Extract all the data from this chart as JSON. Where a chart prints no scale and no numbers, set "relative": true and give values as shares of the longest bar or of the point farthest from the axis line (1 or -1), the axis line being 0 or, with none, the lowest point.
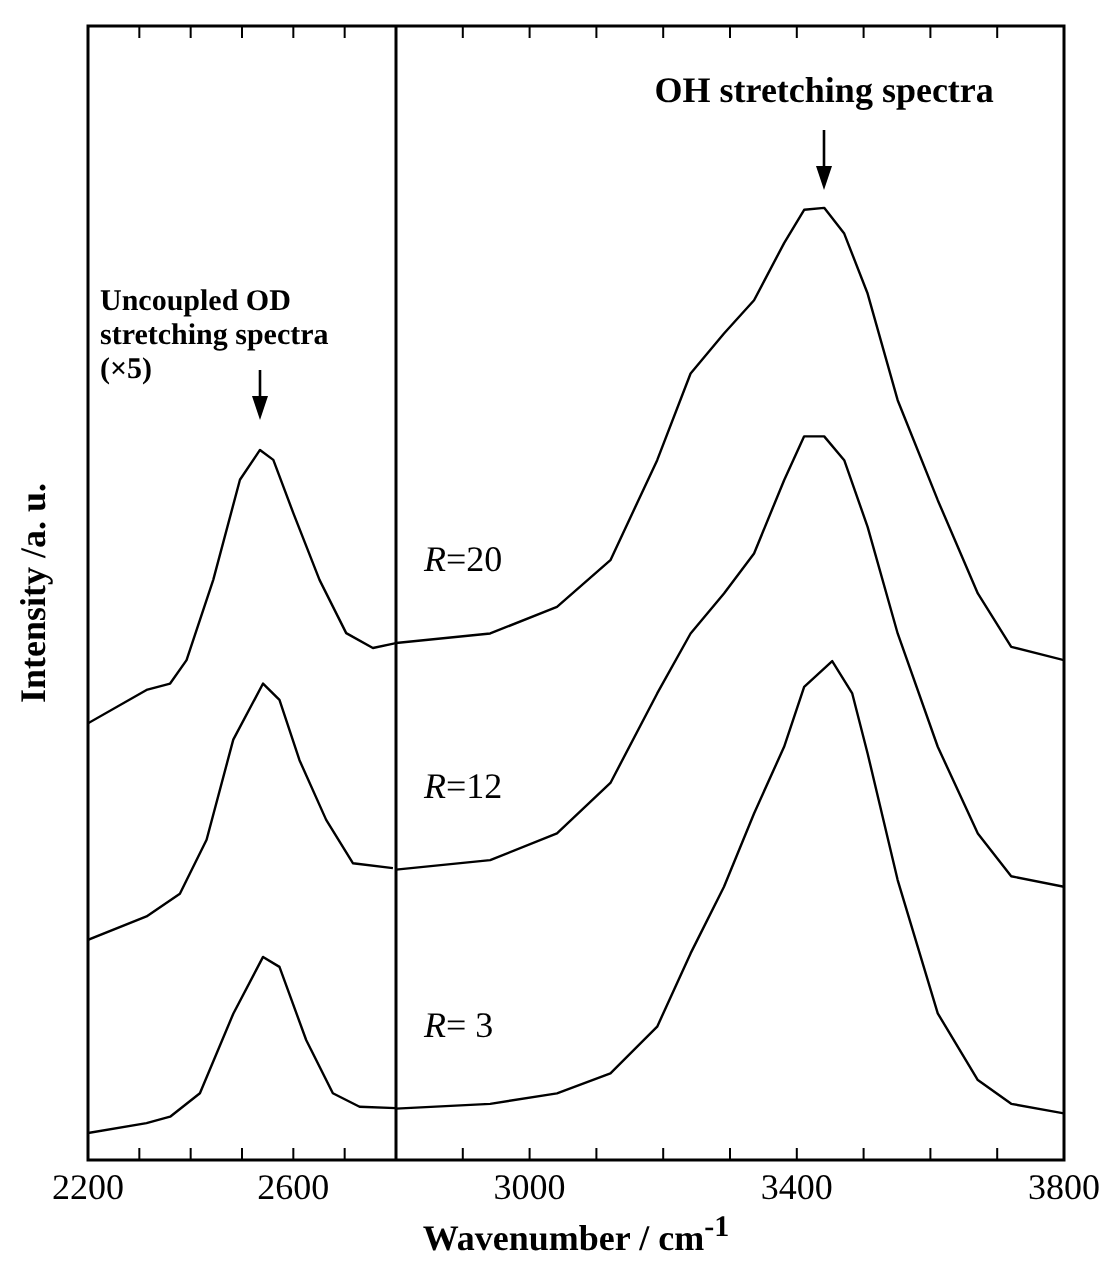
{
  "chart_data": [
    {
      "type": "line",
      "relative": true,
      "ylabel": "Intensity /a. u.",
      "xlim": [
        2200,
        2800
      ],
      "xticks": [
        2200,
        {
          "value": 2300,
          "label": null
        },
        {
          "value": 2400,
          "label": null
        },
        {
          "value": 2500,
          "label": null
        },
        2600,
        {
          "value": 2700,
          "label": null
        }
      ],
      "annotations": [
        "Uncoupled OD\nstretching spectra\n(×5)"
      ],
      "legend": false,
      "grid": false,
      "marker": "none",
      "line_style": "solid",
      "series": [
        {
          "color": "#000000",
          "x": [
            2200,
            2314,
            2360,
            2392,
            2444,
            2496,
            2535,
            2561,
            2600,
            2651,
            2703,
            2755,
            2800
          ],
          "values": [
            0.615,
            0.662,
            0.671,
            0.704,
            0.817,
            0.958,
            1.0,
            0.986,
            0.911,
            0.817,
            0.742,
            0.721,
            0.728
          ]
        },
        {
          "color": "#000000",
          "x": [
            2200,
            2314,
            2379,
            2431,
            2483,
            2541,
            2573,
            2612,
            2664,
            2716,
            2794
          ],
          "values": [
            0.31,
            0.343,
            0.375,
            0.451,
            0.592,
            0.671,
            0.648,
            0.563,
            0.479,
            0.418,
            0.411
          ]
        },
        {
          "color": "#000000",
          "x": [
            2200,
            2314,
            2360,
            2418,
            2483,
            2541,
            2573,
            2625,
            2677,
            2729,
            2800
          ],
          "values": [
            0.038,
            0.052,
            0.061,
            0.094,
            0.206,
            0.286,
            0.272,
            0.169,
            0.094,
            0.075,
            0.073
          ]
        }
      ]
    },
    {
      "type": "line",
      "relative": true,
      "xlabel": "Wavenumber / cm$^{-1}$",
      "xlim": [
        2800,
        3800
      ],
      "xticks": [
        {
          "value": 2900,
          "label": null
        },
        3000,
        {
          "value": 3100,
          "label": null
        },
        {
          "value": 3200,
          "label": null
        },
        {
          "value": 3300,
          "label": null
        },
        3400,
        {
          "value": 3500,
          "label": null
        },
        {
          "value": 3600,
          "label": null
        },
        {
          "value": 3700,
          "label": null
        },
        3800
      ],
      "annotations": [
        "OH stretching spectra"
      ],
      "legend": false,
      "grid": false,
      "marker": "none",
      "line_style": "solid",
      "series": [
        {
          "name": "R=20",
          "color": "#000000",
          "x": [
            2800,
            2941,
            3041,
            3121,
            3191,
            3241,
            3291,
            3336,
            3381,
            3411,
            3441,
            3471,
            3506,
            3551,
            3611,
            3671,
            3721,
            3800
          ],
          "values": [
            0.543,
            0.553,
            0.581,
            0.63,
            0.735,
            0.826,
            0.868,
            0.903,
            0.963,
            0.998,
            1.0,
            0.973,
            0.91,
            0.798,
            0.693,
            0.595,
            0.539,
            0.525
          ]
        },
        {
          "name": "R=12",
          "color": "#000000",
          "x": [
            2800,
            2941,
            3041,
            3121,
            3191,
            3241,
            3291,
            3336,
            3381,
            3411,
            3441,
            3471,
            3506,
            3551,
            3611,
            3671,
            3721,
            3800
          ],
          "values": [
            0.305,
            0.315,
            0.343,
            0.396,
            0.49,
            0.553,
            0.595,
            0.637,
            0.714,
            0.76,
            0.76,
            0.735,
            0.665,
            0.553,
            0.434,
            0.343,
            0.298,
            0.287
          ]
        },
        {
          "name": "R= 3",
          "color": "#000000",
          "x": [
            2800,
            2941,
            3041,
            3121,
            3191,
            3241,
            3291,
            3336,
            3381,
            3411,
            3453,
            3483,
            3506,
            3551,
            3611,
            3671,
            3721,
            3800
          ],
          "values": [
            0.054,
            0.059,
            0.07,
            0.091,
            0.14,
            0.217,
            0.287,
            0.364,
            0.434,
            0.497,
            0.524,
            0.49,
            0.427,
            0.294,
            0.154,
            0.084,
            0.059,
            0.049
          ]
        }
      ]
    }
  ]
}
